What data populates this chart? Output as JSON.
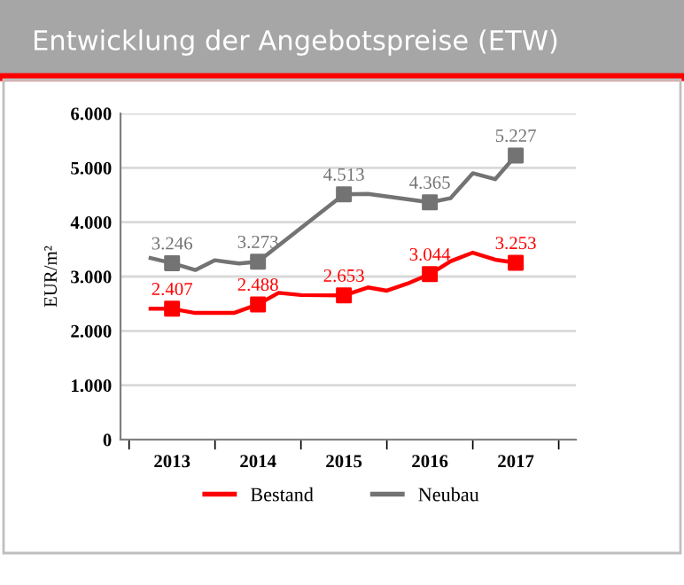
{
  "chart_data": {
    "type": "line",
    "title": "Entwicklung der Angebotspreise (ETW)",
    "ylabel": "EUR/m²",
    "xlim": [
      2012.9,
      2018.2
    ],
    "xticks": [
      {
        "value": 2013,
        "label": null
      },
      {
        "value": 2013.5,
        "label": "2013"
      },
      {
        "value": 2014,
        "label": null
      },
      {
        "value": 2014.5,
        "label": "2014"
      },
      {
        "value": 2015,
        "label": null
      },
      {
        "value": 2015.5,
        "label": "2015"
      },
      {
        "value": 2016,
        "label": null
      },
      {
        "value": 2016.5,
        "label": "2016"
      },
      {
        "value": 2017,
        "label": null
      },
      {
        "value": 2017.5,
        "label": "2017"
      },
      {
        "value": 2018,
        "label": null
      }
    ],
    "ylim": [
      0,
      6000
    ],
    "yticks": [
      {
        "value": 0,
        "label": "0"
      },
      {
        "value": 1000,
        "label": "1.000"
      },
      {
        "value": 2000,
        "label": "2.000"
      },
      {
        "value": 3000,
        "label": "3.000"
      },
      {
        "value": 4000,
        "label": "4.000"
      },
      {
        "value": 5000,
        "label": "5.000"
      },
      {
        "value": 6000,
        "label": "6.000"
      }
    ],
    "grid": "y",
    "legend": "bottom",
    "line_style": "solid",
    "series": [
      {
        "name": "Bestand",
        "color": "#ff0000",
        "x": [
          2013.25,
          2013.5,
          2013.77,
          2014.22,
          2014.5,
          2014.74,
          2015.0,
          2015.5,
          2015.78,
          2016.0,
          2016.24,
          2016.5,
          2016.74,
          2017.0,
          2017.26,
          2017.5
        ],
        "values": [
          2410,
          2407,
          2330,
          2330,
          2488,
          2700,
          2660,
          2653,
          2800,
          2740,
          2870,
          3044,
          3280,
          3440,
          3310,
          3253
        ]
      },
      {
        "name": "Neubau",
        "color": "#737373",
        "x": [
          2013.25,
          2013.5,
          2013.77,
          2014.0,
          2014.28,
          2014.5,
          2015.5,
          2015.78,
          2016.5,
          2016.74,
          2017.0,
          2017.26,
          2017.5
        ],
        "values": [
          3340,
          3246,
          3120,
          3300,
          3240,
          3273,
          4513,
          4520,
          4365,
          4440,
          4900,
          4790,
          5227
        ]
      },
      {
        "type": "scatter",
        "marker": "square",
        "color": "#ff0000",
        "x": [
          2013.5,
          2014.5,
          2015.5,
          2016.5,
          2017.5
        ],
        "values": [
          2407,
          2488,
          2653,
          3044,
          3253
        ],
        "value_labels": [
          "2.407",
          "2.488",
          "2.653",
          "3.044",
          "3.253"
        ]
      },
      {
        "type": "scatter",
        "marker": "square",
        "color": "#737373",
        "x": [
          2013.5,
          2014.5,
          2015.5,
          2016.5,
          2017.5
        ],
        "values": [
          3246,
          3273,
          4513,
          4365,
          5227
        ],
        "value_labels": [
          "3.246",
          "3.273",
          "4.513",
          "4.365",
          "5.227"
        ]
      }
    ]
  }
}
